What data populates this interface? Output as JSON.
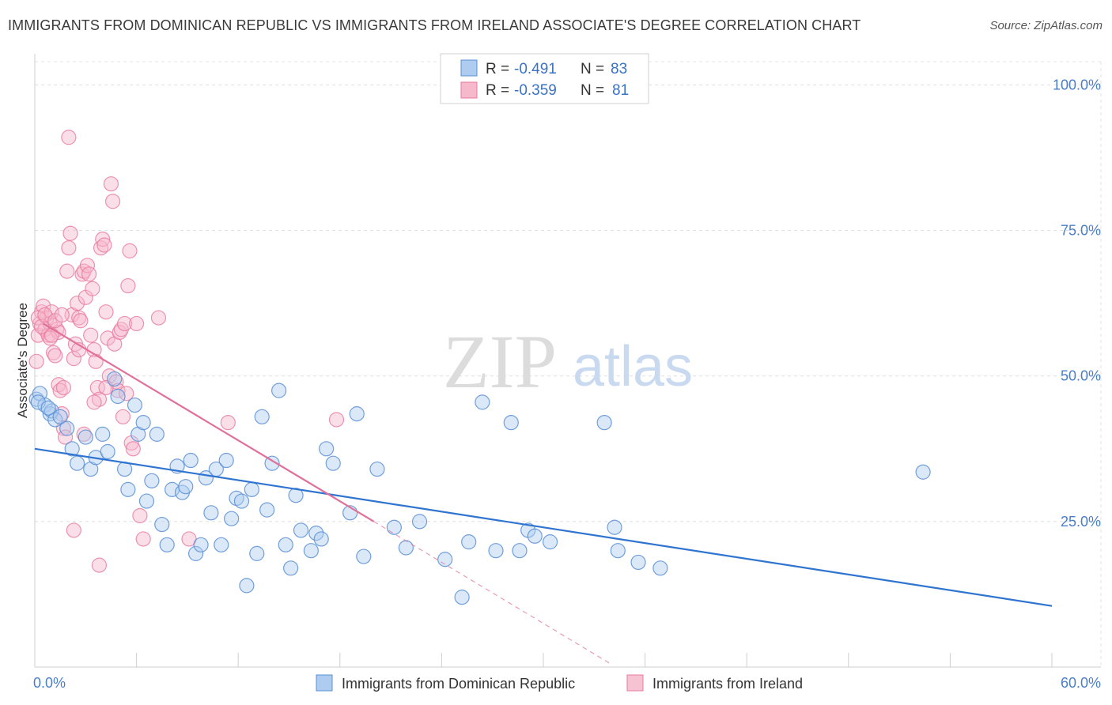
{
  "title": "IMMIGRANTS FROM DOMINICAN REPUBLIC VS IMMIGRANTS FROM IRELAND ASSOCIATE'S DEGREE CORRELATION CHART",
  "source": "Source: ZipAtlas.com",
  "watermark": {
    "zip": "ZIP",
    "atlas": "atlas"
  },
  "stats": {
    "r_label": "R =",
    "n_label": "N =",
    "blue": {
      "r": "-0.491",
      "n": "83"
    },
    "pink": {
      "r": "-0.359",
      "n": "81"
    }
  },
  "colors": {
    "blue": "#5b8fd6",
    "blue_fill": "#aecbf0",
    "blue_line": "#2f74d0",
    "pink": "#e8799e",
    "pink_fill": "#f6b9cc",
    "pink_line": "#e0709a",
    "tick_text": "#4a7fc8"
  },
  "chart_data": {
    "type": "scatter",
    "xlabel": "",
    "ylabel": "Associate's Degree",
    "xlim": [
      0,
      60
    ],
    "ylim": [
      0,
      104
    ],
    "x_tick_labels": [
      "0.0%",
      "60.0%"
    ],
    "y_ticks": [
      25,
      50,
      75,
      100
    ],
    "y_tick_labels": [
      "25.0%",
      "50.0%",
      "75.0%",
      "100.0%"
    ],
    "grid": true,
    "legend_position": "bottom",
    "series": [
      {
        "name": "Immigrants from Dominican Republic",
        "color": "#5b8fd6",
        "trend": {
          "x0": 0,
          "y0": 37.5,
          "x1": 60,
          "y1": 10.5
        },
        "points": [
          [
            0.1,
            46.0
          ],
          [
            0.3,
            47.0
          ],
          [
            0.6,
            45.0
          ],
          [
            0.9,
            43.5
          ],
          [
            1.0,
            44.0
          ],
          [
            1.2,
            42.5
          ],
          [
            1.5,
            43.0
          ],
          [
            1.9,
            41.0
          ],
          [
            2.2,
            37.5
          ],
          [
            2.5,
            35.0
          ],
          [
            3.0,
            39.5
          ],
          [
            3.3,
            34.0
          ],
          [
            3.6,
            36.0
          ],
          [
            4.0,
            40.0
          ],
          [
            4.3,
            37.0
          ],
          [
            4.7,
            49.5
          ],
          [
            4.9,
            46.5
          ],
          [
            5.3,
            34.0
          ],
          [
            5.5,
            30.5
          ],
          [
            5.9,
            45.0
          ],
          [
            6.1,
            40.0
          ],
          [
            6.4,
            42.0
          ],
          [
            6.6,
            28.5
          ],
          [
            6.9,
            32.0
          ],
          [
            7.2,
            40.0
          ],
          [
            7.5,
            24.5
          ],
          [
            7.8,
            21.0
          ],
          [
            8.1,
            30.5
          ],
          [
            8.4,
            34.5
          ],
          [
            8.7,
            30.0
          ],
          [
            8.9,
            31.0
          ],
          [
            9.2,
            35.5
          ],
          [
            9.5,
            19.5
          ],
          [
            9.8,
            21.0
          ],
          [
            10.1,
            32.5
          ],
          [
            10.4,
            26.5
          ],
          [
            10.7,
            34.0
          ],
          [
            11.0,
            21.0
          ],
          [
            11.3,
            35.5
          ],
          [
            11.6,
            25.5
          ],
          [
            11.9,
            29.0
          ],
          [
            12.2,
            28.5
          ],
          [
            12.5,
            14.0
          ],
          [
            12.8,
            30.5
          ],
          [
            13.1,
            19.5
          ],
          [
            13.4,
            43.0
          ],
          [
            13.7,
            27.0
          ],
          [
            14.0,
            35.0
          ],
          [
            14.4,
            47.5
          ],
          [
            14.8,
            21.0
          ],
          [
            15.1,
            17.0
          ],
          [
            15.4,
            29.5
          ],
          [
            15.7,
            23.5
          ],
          [
            16.3,
            20.0
          ],
          [
            16.6,
            23.0
          ],
          [
            16.9,
            22.0
          ],
          [
            17.2,
            37.5
          ],
          [
            17.6,
            35.0
          ],
          [
            18.6,
            26.5
          ],
          [
            19.0,
            43.5
          ],
          [
            19.4,
            19.0
          ],
          [
            20.2,
            34.0
          ],
          [
            21.2,
            24.0
          ],
          [
            21.9,
            20.5
          ],
          [
            22.7,
            25.0
          ],
          [
            24.2,
            18.5
          ],
          [
            25.2,
            12.0
          ],
          [
            25.6,
            21.5
          ],
          [
            26.4,
            45.5
          ],
          [
            27.2,
            20.0
          ],
          [
            28.1,
            42.0
          ],
          [
            28.6,
            20.0
          ],
          [
            29.1,
            23.5
          ],
          [
            29.5,
            22.5
          ],
          [
            30.4,
            21.5
          ],
          [
            33.6,
            42.0
          ],
          [
            34.2,
            24.0
          ],
          [
            34.4,
            20.0
          ],
          [
            35.6,
            18.0
          ],
          [
            36.9,
            17.0
          ],
          [
            52.4,
            33.5
          ],
          [
            0.2,
            45.5
          ],
          [
            0.8,
            44.5
          ]
        ]
      },
      {
        "name": "Immigrants from Ireland",
        "color": "#e8799e",
        "trend": {
          "x0": 0.5,
          "y0": 59.0,
          "x1": 20.0,
          "y1": 25.0,
          "dash_x1": 34.0,
          "dash_y1": 0.5
        },
        "points": [
          [
            0.1,
            52.5
          ],
          [
            0.2,
            57.0
          ],
          [
            0.3,
            59.0
          ],
          [
            0.4,
            61.0
          ],
          [
            0.5,
            62.0
          ],
          [
            0.6,
            58.0
          ],
          [
            0.7,
            60.0
          ],
          [
            0.8,
            57.0
          ],
          [
            0.9,
            59.0
          ],
          [
            1.0,
            61.0
          ],
          [
            1.1,
            54.0
          ],
          [
            1.2,
            53.5
          ],
          [
            1.3,
            58.0
          ],
          [
            1.4,
            57.5
          ],
          [
            1.4,
            48.5
          ],
          [
            1.5,
            47.5
          ],
          [
            1.6,
            43.5
          ],
          [
            1.7,
            41.0
          ],
          [
            1.8,
            39.5
          ],
          [
            1.9,
            68.0
          ],
          [
            2.0,
            72.0
          ],
          [
            2.1,
            74.5
          ],
          [
            2.2,
            60.5
          ],
          [
            2.3,
            53.0
          ],
          [
            2.4,
            55.5
          ],
          [
            2.5,
            62.5
          ],
          [
            2.6,
            60.0
          ],
          [
            2.7,
            59.5
          ],
          [
            2.8,
            67.5
          ],
          [
            2.9,
            68.0
          ],
          [
            3.0,
            63.5
          ],
          [
            3.1,
            69.0
          ],
          [
            3.2,
            67.5
          ],
          [
            3.3,
            57.0
          ],
          [
            3.4,
            65.0
          ],
          [
            3.5,
            54.5
          ],
          [
            3.6,
            52.5
          ],
          [
            3.7,
            48.0
          ],
          [
            3.8,
            46.0
          ],
          [
            3.9,
            72.0
          ],
          [
            4.0,
            73.5
          ],
          [
            4.1,
            72.5
          ],
          [
            4.2,
            61.0
          ],
          [
            4.3,
            56.5
          ],
          [
            4.4,
            50.0
          ],
          [
            4.5,
            83.0
          ],
          [
            4.6,
            80.0
          ],
          [
            4.7,
            55.5
          ],
          [
            4.8,
            49.0
          ],
          [
            4.9,
            47.5
          ],
          [
            5.0,
            57.5
          ],
          [
            5.1,
            58.0
          ],
          [
            5.2,
            43.0
          ],
          [
            5.3,
            59.0
          ],
          [
            5.4,
            47.0
          ],
          [
            5.5,
            65.5
          ],
          [
            5.6,
            71.5
          ],
          [
            5.7,
            38.5
          ],
          [
            5.8,
            37.5
          ],
          [
            6.0,
            59.0
          ],
          [
            6.2,
            26.0
          ],
          [
            6.4,
            22.0
          ],
          [
            7.3,
            60.0
          ],
          [
            9.1,
            22.0
          ],
          [
            11.4,
            42.0
          ],
          [
            2.0,
            91.0
          ],
          [
            2.3,
            23.5
          ],
          [
            3.8,
            17.5
          ],
          [
            0.2,
            60.0
          ],
          [
            0.4,
            58.5
          ],
          [
            0.6,
            60.5
          ],
          [
            0.9,
            56.5
          ],
          [
            1.2,
            59.5
          ],
          [
            1.6,
            60.5
          ],
          [
            1.7,
            48.0
          ],
          [
            2.6,
            54.5
          ],
          [
            2.9,
            40.0
          ],
          [
            3.5,
            45.5
          ],
          [
            4.2,
            48.0
          ],
          [
            17.8,
            42.5
          ],
          [
            1.0,
            57.0
          ]
        ]
      }
    ]
  },
  "legend": {
    "items": [
      {
        "label": "Immigrants from Dominican Republic",
        "color": "#aecbf0",
        "stroke": "#5b8fd6"
      },
      {
        "label": "Immigrants from Ireland",
        "color": "#f6c3d2",
        "stroke": "#e8799e"
      }
    ]
  }
}
